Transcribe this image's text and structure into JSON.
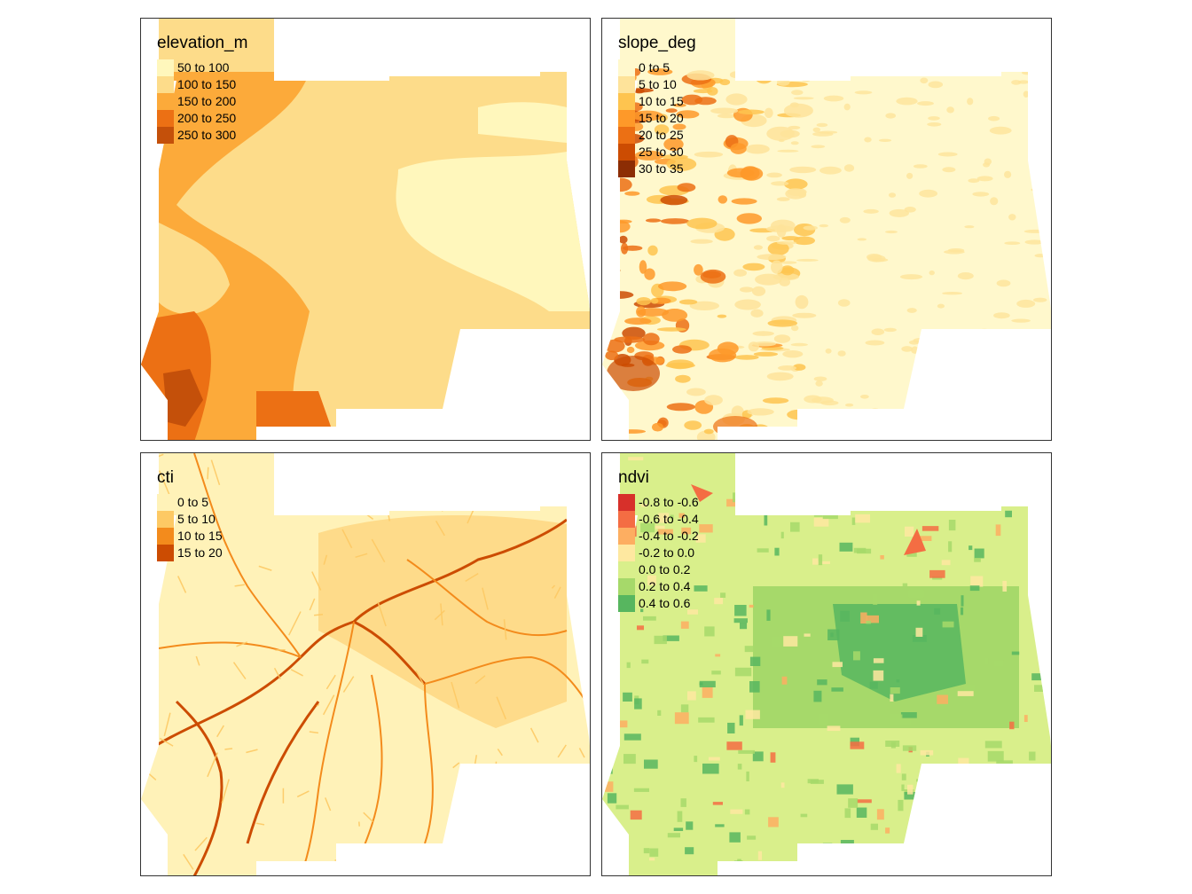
{
  "panels": [
    {
      "id": "p1",
      "title": "elevation_m",
      "palette": "elev",
      "legend": [
        {
          "label": "50 to 100",
          "color": "#fff7bc"
        },
        {
          "label": "100 to 150",
          "color": "#fddc8a"
        },
        {
          "label": "150 to 200",
          "color": "#fcaa3a"
        },
        {
          "label": "200 to 250",
          "color": "#ec7014"
        },
        {
          "label": "250 to 300",
          "color": "#c4500a"
        }
      ]
    },
    {
      "id": "p2",
      "title": "slope_deg",
      "palette": "slope",
      "legend": [
        {
          "label": "0 to 5",
          "color": "#fff8cc"
        },
        {
          "label": "5 to 10",
          "color": "#fee39a"
        },
        {
          "label": "10 to 15",
          "color": "#fec44f"
        },
        {
          "label": "15 to 20",
          "color": "#fe9929"
        },
        {
          "label": "20 to 25",
          "color": "#ec7014"
        },
        {
          "label": "25 to 30",
          "color": "#cc4c02"
        },
        {
          "label": "30 to 35",
          "color": "#8c2d04"
        }
      ]
    },
    {
      "id": "p3",
      "title": "cti",
      "palette": "cti",
      "legend": [
        {
          "label": "0 to 5",
          "color": "#fff2b8"
        },
        {
          "label": "5 to 10",
          "color": "#fdc964"
        },
        {
          "label": "10 to 15",
          "color": "#f38b1c"
        },
        {
          "label": "15 to 20",
          "color": "#cc4c02"
        }
      ]
    },
    {
      "id": "p4",
      "title": "ndvi",
      "palette": "ndvi",
      "legend": [
        {
          "label": "-0.8 to -0.6",
          "color": "#d7302a"
        },
        {
          "label": "-0.6 to -0.4",
          "color": "#f46d43"
        },
        {
          "label": "-0.4 to -0.2",
          "color": "#fdae61"
        },
        {
          "label": "-0.2 to 0.0",
          "color": "#fee8a0"
        },
        {
          "label": "0.0 to 0.2",
          "color": "#d9ef8b"
        },
        {
          "label": "0.2 to 0.4",
          "color": "#a6d96a"
        },
        {
          "label": "0.4 to 0.6",
          "color": "#57b65f"
        }
      ]
    }
  ]
}
